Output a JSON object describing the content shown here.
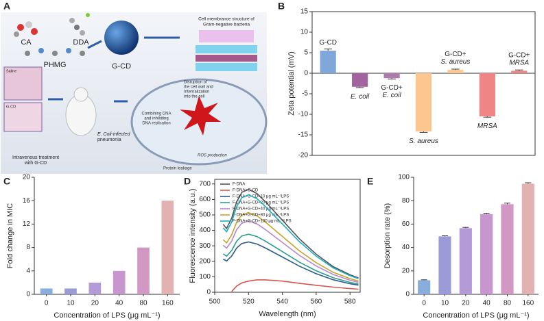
{
  "diagram": {
    "panel_label": "A",
    "molecules": [
      "CA",
      "DDA",
      "PHMG"
    ],
    "product": "G-CD",
    "membrane_caption": [
      "Cell membrance structure of",
      "Gram-negative bacteria"
    ],
    "disruption": [
      "Disruption of",
      "the cell wall and",
      "Internalization",
      "into the cell"
    ],
    "dna": [
      "Combining DNA",
      "and inhibiting",
      "DNA replication"
    ],
    "ros": "ROS production",
    "leakage": "Protein leakage",
    "infection": [
      "E. Coli-infected",
      "pneumonia"
    ],
    "treatment": [
      "Intravenous treatment",
      "with G-CD"
    ],
    "micrographs": [
      "Saline",
      "G-CD"
    ]
  },
  "chart_data": [
    {
      "panel_label": "B",
      "type": "bar",
      "frame": "box",
      "ylabel": "Zeta potential (mV)",
      "categories": [
        "G-CD",
        "E. coil",
        "G-CD+\nE. coil",
        "S. aureus",
        "G-CD+\nS. aureus",
        "MRSA",
        "G-CD+\nMRSA"
      ],
      "values": [
        5.5,
        -3.3,
        -1.2,
        -14.2,
        0.8,
        -10.5,
        0.6
      ],
      "errors": [
        0.4,
        0.2,
        0.2,
        0.2,
        0.2,
        0.2,
        0.2
      ],
      "colors": [
        "#7fa7d9",
        "#a2649f",
        "#ad7cad",
        "#fcc690",
        "#fcc690",
        "#f08585",
        "#f08585"
      ],
      "ylim": [
        -20,
        15
      ],
      "yticks": [
        -20,
        -15,
        -10,
        -5,
        0,
        5,
        10,
        15
      ]
    },
    {
      "panel_label": "C",
      "type": "bar",
      "frame": "axes",
      "ylabel": "Fold change in MIC",
      "xlabel": "Concentration of LPS (μg mL⁻¹)",
      "categories": [
        "0",
        "10",
        "20",
        "40",
        "80",
        "160"
      ],
      "values": [
        1,
        1,
        2,
        4,
        8,
        16
      ],
      "colors": [
        "#8aaedb",
        "#9b9bd8",
        "#b49ad7",
        "#c796cf",
        "#d098c3",
        "#e2b1b1"
      ],
      "ylim": [
        0,
        20
      ],
      "yticks": [
        0,
        4,
        8,
        12,
        16,
        20
      ]
    },
    {
      "panel_label": "D",
      "type": "line",
      "frame": "box",
      "ylabel": "Fluorescence intensity  (a.u.)",
      "xlabel": "Wavelength (nm)",
      "x": [
        505,
        507,
        510,
        513,
        516,
        520,
        525,
        530,
        540,
        550,
        560,
        570,
        580,
        585
      ],
      "series": [
        {
          "name": "F-DNA",
          "color": "#555555",
          "values": [
            439,
            412,
            479,
            585,
            645,
            665,
            638,
            585,
            466,
            346,
            246,
            166,
            113,
            93
          ]
        },
        {
          "name": "F-DNA+G-CD",
          "color": "#d9534f",
          "values": [
            null,
            null,
            5,
            40,
            60,
            72,
            80,
            80,
            72,
            58,
            45,
            33,
            24,
            20
          ]
        },
        {
          "name": "F-DNA+G-CD+10 μg mL⁻¹LPS",
          "color": "#2b5a8c",
          "values": [
            215,
            202,
            234,
            286,
            315,
            325,
            312,
            286,
            228,
            169,
            120,
            81,
            55,
            46
          ]
        },
        {
          "name": "F-DNA+G-CD+20 μg mL⁻¹LPS",
          "color": "#2a9d8f",
          "values": [
            248,
            233,
            270,
            330,
            364,
            375,
            360,
            330,
            263,
            195,
            139,
            94,
            64,
            53
          ]
        },
        {
          "name": "F-DNA+G-CD+40 μg mL⁻¹LPS",
          "color": "#b487cf",
          "values": [
            304,
            285,
            331,
            405,
            446,
            460,
            442,
            405,
            322,
            239,
            170,
            115,
            78,
            64
          ]
        },
        {
          "name": "F-DNA+G-CD+80 μg mL⁻¹LPS",
          "color": "#c9a227",
          "values": [
            340,
            319,
            371,
            453,
            500,
            515,
            494,
            453,
            361,
            268,
            191,
            129,
            88,
            72
          ]
        },
        {
          "name": "F-DNA+G-CD+100 μg mL⁻¹LPS",
          "color": "#1aaec0",
          "values": [
            416,
            391,
            454,
            554,
            611,
            630,
            605,
            554,
            441,
            328,
            233,
            158,
            107,
            88
          ]
        }
      ],
      "xlim": [
        500,
        586
      ],
      "xticks": [
        500,
        520,
        540,
        560,
        580
      ],
      "ylim": [
        0,
        730
      ],
      "yticks": [
        0,
        100,
        200,
        300,
        400,
        500,
        600,
        700
      ]
    },
    {
      "panel_label": "E",
      "type": "bar",
      "frame": "axes",
      "ylabel": "Desorption rate (%)",
      "xlabel": "Concentration of LPS (μg mL⁻¹)",
      "categories": [
        "0",
        "10",
        "20",
        "40",
        "80",
        "160"
      ],
      "values": [
        12,
        49.5,
        56.5,
        68.5,
        77,
        94.5
      ],
      "errors": [
        0.4,
        0.5,
        0.7,
        0.8,
        0.9,
        0.8
      ],
      "colors": [
        "#8aaedb",
        "#9b9bd8",
        "#b49ad7",
        "#c796cf",
        "#d098c3",
        "#e2b1b1"
      ],
      "ylim": [
        0,
        100
      ],
      "yticks": [
        0,
        20,
        40,
        60,
        80,
        100
      ]
    }
  ]
}
